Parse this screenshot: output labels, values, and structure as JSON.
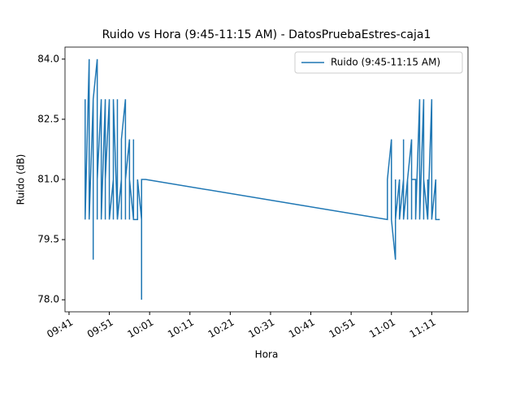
{
  "chart_data": {
    "type": "line",
    "title": "Ruido vs Hora (9:45-11:15 AM) - DatosPruebaEstres-caja1",
    "x_label": "Hora",
    "y_label": "Ruido (dB)",
    "x": [
      "09:45",
      "09:45",
      "09:45",
      "09:45",
      "09:46",
      "09:46",
      "09:46",
      "09:46",
      "09:47",
      "09:47",
      "09:47",
      "09:47",
      "09:48",
      "09:48",
      "09:48",
      "09:48",
      "09:49",
      "09:49",
      "09:49",
      "09:49",
      "09:50",
      "09:50",
      "09:50",
      "09:51",
      "09:51",
      "09:51",
      "09:51",
      "09:52",
      "09:52",
      "09:52",
      "09:53",
      "09:53",
      "09:53",
      "09:54",
      "09:54",
      "09:54",
      "09:55",
      "09:55",
      "09:55",
      "09:56",
      "09:56",
      "09:56",
      "09:57",
      "09:57",
      "09:57",
      "09:58",
      "09:58",
      "09:59",
      "09:59",
      "09:59",
      "10:00",
      "11:00",
      "11:00",
      "11:00",
      "11:00",
      "11:01",
      "11:01",
      "11:01",
      "11:01",
      "11:02",
      "11:02",
      "11:02",
      "11:02",
      "11:03",
      "11:03",
      "11:04",
      "11:04",
      "11:04",
      "11:04",
      "11:05",
      "11:05",
      "11:05",
      "11:06",
      "11:06",
      "11:06",
      "11:07",
      "11:07",
      "11:07",
      "11:07",
      "11:08",
      "11:08",
      "11:08",
      "11:08",
      "11:09",
      "11:09",
      "11:09",
      "11:10",
      "11:10",
      "11:10",
      "11:11",
      "11:11",
      "11:11",
      "11:11",
      "11:12",
      "11:12",
      "11:13"
    ],
    "series": [
      {
        "name": "Ruido (9:45-11:15 AM)",
        "color": "#1f77b4",
        "values": [
          83,
          80,
          83,
          80,
          84,
          80,
          81,
          80,
          83,
          79,
          80,
          83,
          84,
          80,
          83,
          81,
          83,
          80,
          82,
          80,
          83,
          80,
          81,
          83,
          80,
          83,
          80,
          81,
          80,
          83,
          80,
          83,
          80,
          81,
          80,
          82,
          83,
          80,
          81,
          82,
          80,
          81,
          80,
          82,
          80,
          80,
          81,
          80,
          78,
          81,
          81,
          80,
          81,
          80,
          81,
          82,
          80,
          81,
          80,
          79,
          80,
          81,
          80,
          81,
          80,
          81,
          80,
          82,
          80,
          81,
          80,
          81,
          82,
          80,
          81,
          81,
          80,
          81,
          80,
          83,
          80,
          81,
          80,
          83,
          80,
          81,
          80,
          81,
          80,
          83,
          80,
          81,
          80,
          81,
          80,
          80
        ]
      }
    ],
    "xlim": [
      "09:40",
      "11:20"
    ],
    "xticks": [
      "09:41",
      "09:51",
      "10:01",
      "10:11",
      "10:21",
      "10:31",
      "10:41",
      "10:51",
      "11:01",
      "11:11"
    ],
    "ylim": [
      77.7,
      84.3
    ],
    "yticks": [
      {
        "value": 78,
        "label": "78.0"
      },
      {
        "value": 79.5,
        "label": "79.5"
      },
      {
        "value": 81,
        "label": "81.0"
      },
      {
        "value": 82.5,
        "label": "82.5"
      },
      {
        "value": 84,
        "label": "84.0"
      }
    ],
    "grid": false,
    "legend": "upper right"
  }
}
